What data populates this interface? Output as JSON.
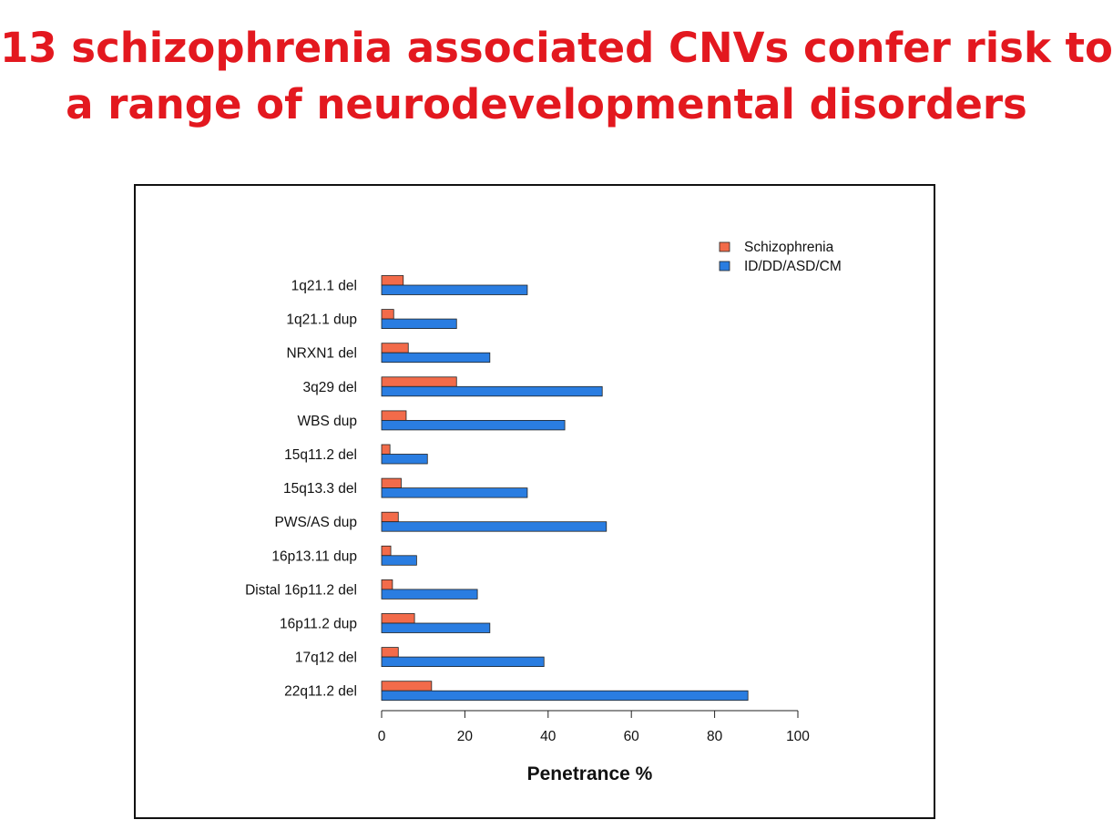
{
  "slide": {
    "title_line1": "13 schizophrenia associated CNVs confer risk to",
    "title_line2": "a range of neurodevelopmental disorders",
    "title_color": "#e3181f"
  },
  "chart_data": {
    "type": "bar",
    "orientation": "horizontal",
    "categories": [
      "1q21.1 del",
      "1q21.1 dup",
      "NRXN1 del",
      "3q29 del",
      "WBS dup",
      "15q11.2 del",
      "15q13.3 del",
      "PWS/AS dup",
      "16p13.11 dup",
      "Distal 16p11.2 del",
      "16p11.2 dup",
      "17q12 del",
      "22q11.2 del"
    ],
    "series": [
      {
        "name": "Schizophrenia",
        "color": "#f26b4a",
        "values": [
          5.2,
          2.9,
          6.4,
          18.0,
          5.9,
          2.0,
          4.7,
          4.0,
          2.2,
          2.6,
          7.9,
          4.0,
          12.0
        ]
      },
      {
        "name": "ID/DD/ASD/CM",
        "color": "#2a7de1",
        "values": [
          35.0,
          18.0,
          26.0,
          53.0,
          44.0,
          11.0,
          35.0,
          54.0,
          8.4,
          23.0,
          26.0,
          39.0,
          88.0
        ]
      }
    ],
    "title": "",
    "xlabel": "Penetrance %",
    "ylabel": "",
    "xlim": [
      0,
      100
    ],
    "xticks": [
      0,
      20,
      40,
      60,
      80,
      100
    ],
    "grid": false,
    "legend_position": "top-right"
  }
}
